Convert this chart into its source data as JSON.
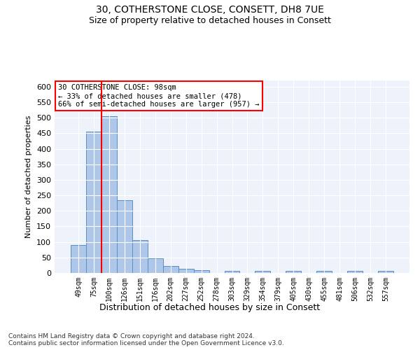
{
  "title1": "30, COTHERSTONE CLOSE, CONSETT, DH8 7UE",
  "title2": "Size of property relative to detached houses in Consett",
  "xlabel": "Distribution of detached houses by size in Consett",
  "ylabel": "Number of detached properties",
  "categories": [
    "49sqm",
    "75sqm",
    "100sqm",
    "126sqm",
    "151sqm",
    "176sqm",
    "202sqm",
    "227sqm",
    "252sqm",
    "278sqm",
    "303sqm",
    "329sqm",
    "354sqm",
    "379sqm",
    "405sqm",
    "430sqm",
    "455sqm",
    "481sqm",
    "506sqm",
    "532sqm",
    "557sqm"
  ],
  "values": [
    90,
    455,
    505,
    235,
    105,
    47,
    22,
    13,
    9,
    0,
    6,
    0,
    7,
    0,
    6,
    0,
    6,
    0,
    6,
    0,
    6
  ],
  "bar_color": "#aec6e8",
  "bar_edge_color": "#5a8fc2",
  "vline_x_index": 1,
  "vline_color": "red",
  "annotation_text": "30 COTHERSTONE CLOSE: 98sqm\n← 33% of detached houses are smaller (478)\n66% of semi-detached houses are larger (957) →",
  "annotation_box_color": "white",
  "annotation_box_edge_color": "red",
  "footnote": "Contains HM Land Registry data © Crown copyright and database right 2024.\nContains public sector information licensed under the Open Government Licence v3.0.",
  "ylim": [
    0,
    620
  ],
  "yticks": [
    0,
    50,
    100,
    150,
    200,
    250,
    300,
    350,
    400,
    450,
    500,
    550,
    600
  ],
  "fig_bg": "white",
  "plot_bg": "#eef3fb",
  "title1_fontsize": 10,
  "title2_fontsize": 9,
  "ylabel_fontsize": 8,
  "xlabel_fontsize": 9,
  "tick_fontsize": 8,
  "xtick_fontsize": 7,
  "footnote_fontsize": 6.5
}
